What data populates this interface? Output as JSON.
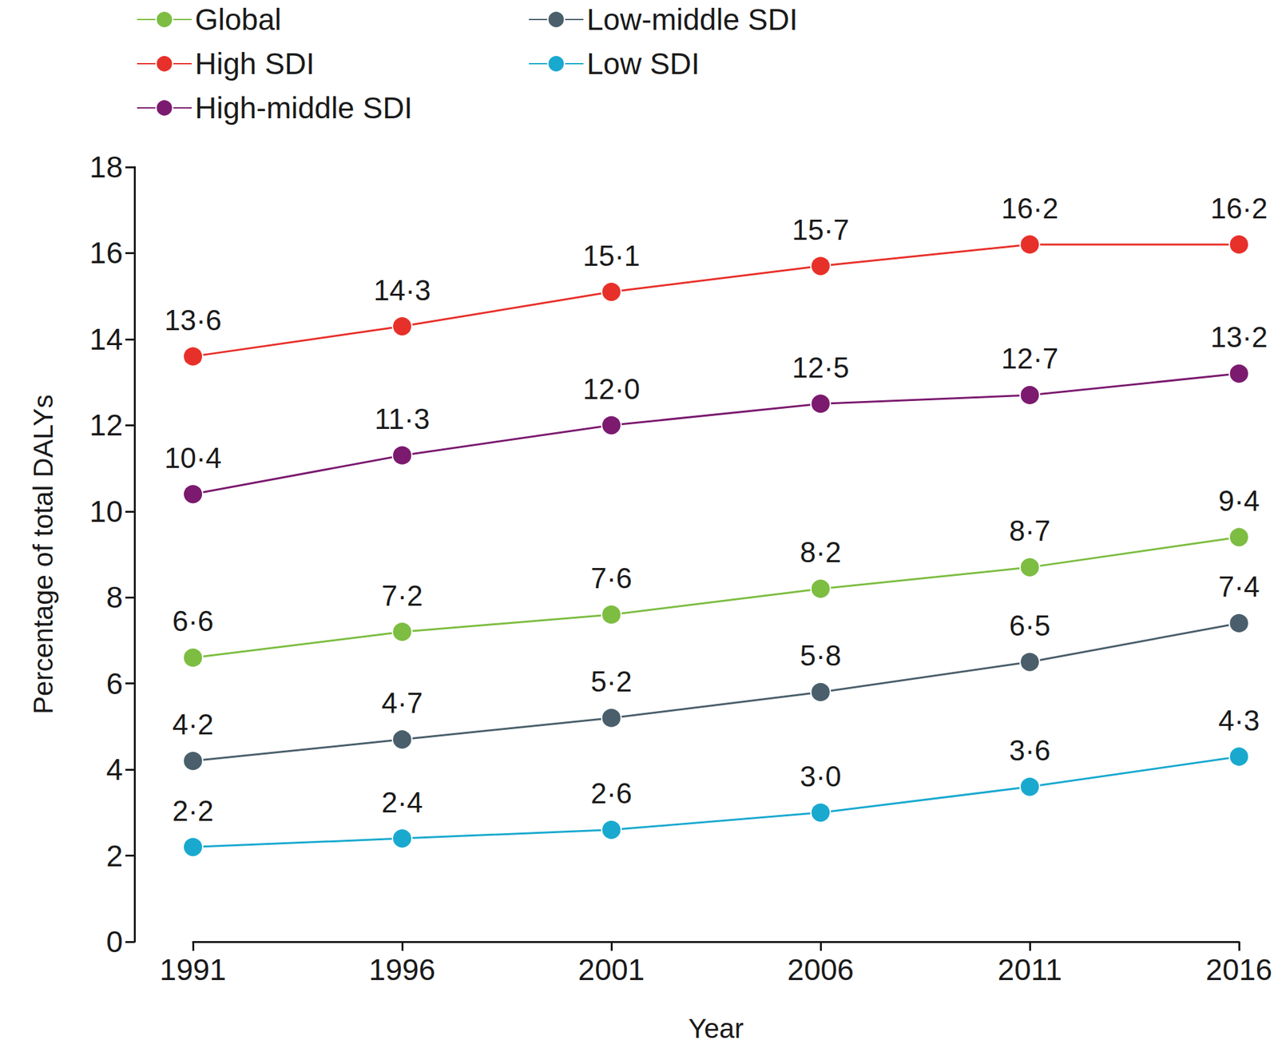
{
  "chart_data": {
    "type": "line",
    "xlabel": "Year",
    "ylabel": "Percentage of total DALYs",
    "categories": [
      "1991",
      "1996",
      "2001",
      "2006",
      "2011",
      "2016"
    ],
    "series": [
      {
        "name": "Global",
        "color": "#7dbd42",
        "marker": "circle",
        "values": [
          6.6,
          7.2,
          7.6,
          8.2,
          8.7,
          9.4
        ],
        "value_labels": [
          "6·6",
          "7·2",
          "7·6",
          "8·2",
          "8·7",
          "9·4"
        ]
      },
      {
        "name": "High SDI",
        "color": "#e8302a",
        "marker": "circle",
        "values": [
          13.6,
          14.3,
          15.1,
          15.7,
          16.2,
          16.2
        ],
        "value_labels": [
          "13·6",
          "14·3",
          "15·1",
          "15·7",
          "16·2",
          "16·2"
        ]
      },
      {
        "name": "High-middle SDI",
        "color": "#7b1a6f",
        "marker": "circle",
        "values": [
          10.4,
          11.3,
          12.0,
          12.5,
          12.7,
          13.2
        ],
        "value_labels": [
          "10·4",
          "11·3",
          "12·0",
          "12·5",
          "12·7",
          "13·2"
        ]
      },
      {
        "name": "Low-middle SDI",
        "color": "#4a5f6b",
        "marker": "circle",
        "values": [
          4.2,
          4.7,
          5.2,
          5.8,
          6.5,
          7.4
        ],
        "value_labels": [
          "4·2",
          "4·7",
          "5·2",
          "5·8",
          "6·5",
          "7·4"
        ]
      },
      {
        "name": "Low SDI",
        "color": "#19a9cf",
        "marker": "circle",
        "values": [
          2.2,
          2.4,
          2.6,
          3.0,
          3.6,
          4.3
        ],
        "value_labels": [
          "2·2",
          "2·4",
          "2·6",
          "3·0",
          "3·6",
          "4·3"
        ]
      }
    ],
    "ylim": [
      0,
      18
    ],
    "yticks": [
      0,
      2,
      4,
      6,
      8,
      10,
      12,
      14,
      16,
      18
    ],
    "grid": false,
    "legend": "top-left",
    "data_labels": true
  }
}
